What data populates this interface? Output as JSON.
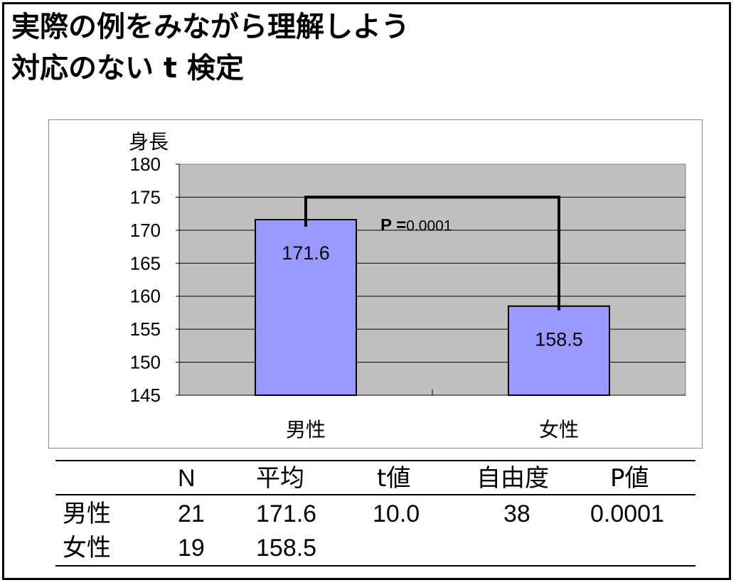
{
  "slide": {
    "title_line1": "実際の例をみながら理解しよう",
    "title_line2": "対応のない t 検定"
  },
  "chart_data": {
    "type": "bar",
    "ylabel": "身長",
    "ylim": [
      145,
      180
    ],
    "yticks": [
      180,
      175,
      170,
      165,
      160,
      155,
      150,
      145
    ],
    "categories": [
      "男性",
      "女性"
    ],
    "values": [
      171.6,
      158.5
    ],
    "data_labels": [
      "171.6",
      "158.5"
    ],
    "bracket_y": 175,
    "annotation": {
      "bold": "P =",
      "rest": "0.0001"
    },
    "grid": true,
    "legend": "none",
    "colors": {
      "bar": "#9999ff",
      "plot_bg": "#c0c0c0",
      "bar_stroke": "#000000"
    }
  },
  "stats_table": {
    "headers": [
      "N",
      "平均",
      "t値",
      "自由度",
      "P値"
    ],
    "rows": [
      {
        "label": "男性",
        "n": "21",
        "mean": "171.6",
        "t": "10.0",
        "df": "38",
        "p": "0.0001"
      },
      {
        "label": "女性",
        "n": "19",
        "mean": "158.5",
        "t": "",
        "df": "",
        "p": ""
      }
    ]
  }
}
